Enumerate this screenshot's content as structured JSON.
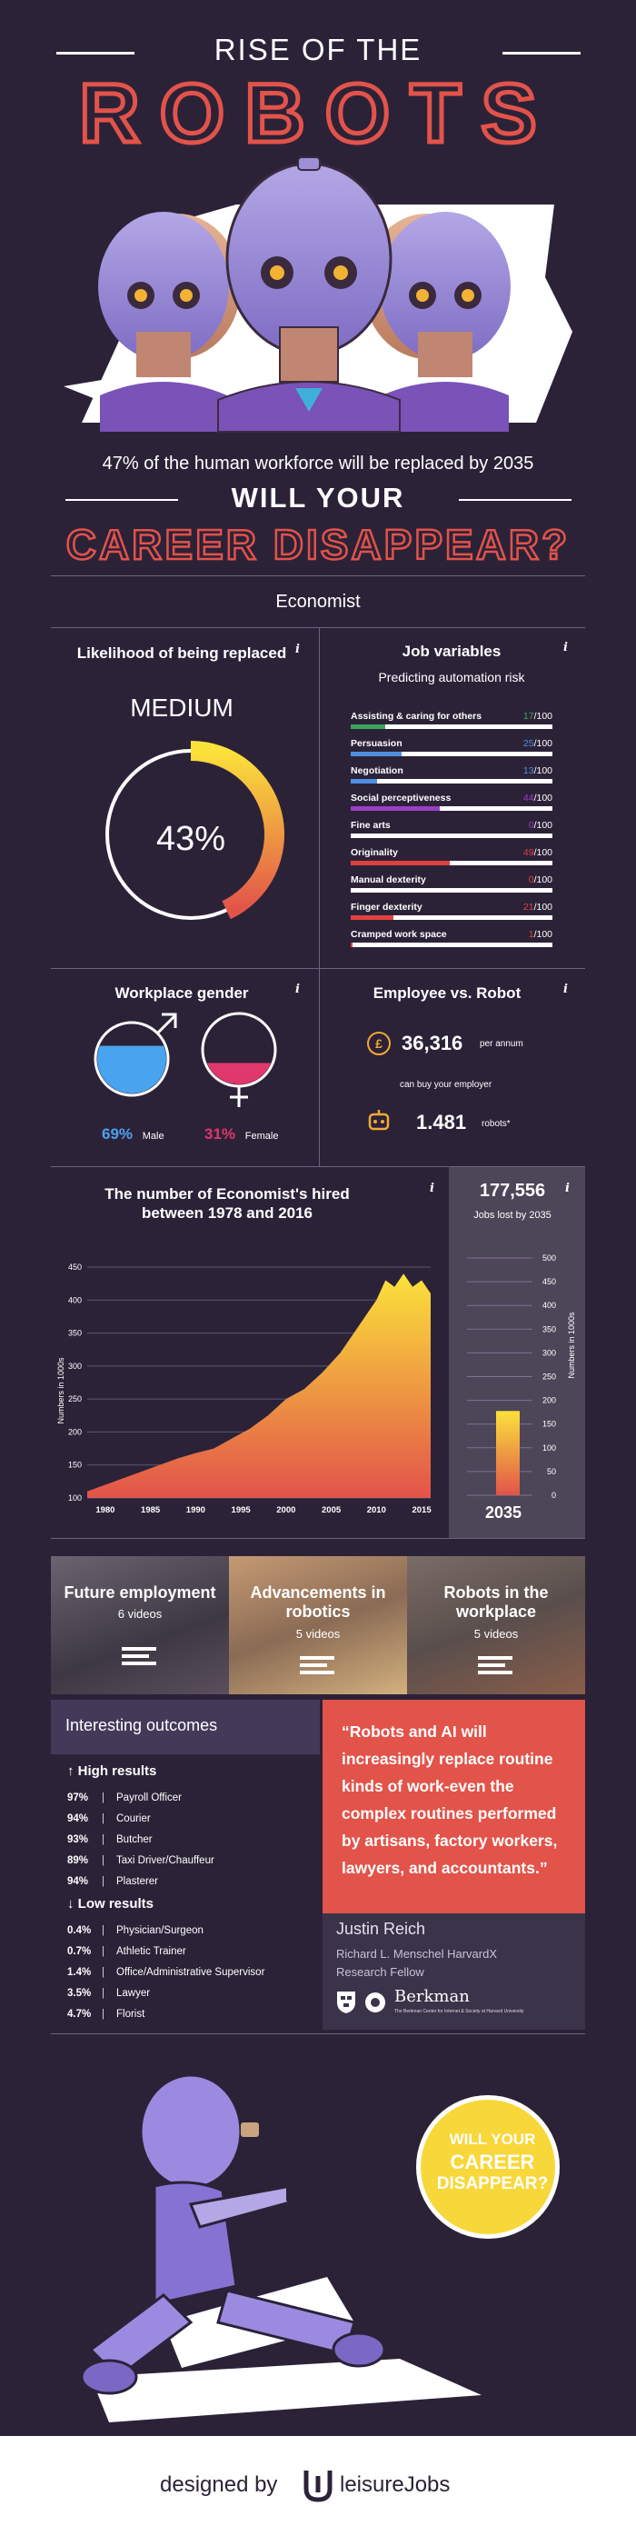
{
  "header": {
    "title_top": "RISE OF THE",
    "title_main": "ROBOTS",
    "stat": "47% of the human workforce will be replaced by 2035",
    "question_top": "WILL YOUR",
    "question_main": "CAREER DISAPPEAR?"
  },
  "job_title": "Economist",
  "likelihood": {
    "title": "Likelihood of being replaced",
    "level": "MEDIUM",
    "percent_label": "43%",
    "percent": 43
  },
  "job_variables": {
    "title": "Job variables",
    "subtitle": "Predicting automation risk",
    "items": [
      {
        "label": "Assisting & caring for others",
        "value": "17",
        "unit": "/100",
        "score": 17,
        "color": "#3aa55d"
      },
      {
        "label": "Persuasion",
        "value": "25",
        "unit": "/100",
        "score": 25,
        "color": "#4d8fe0"
      },
      {
        "label": "Negotiation",
        "value": "13",
        "unit": "/100",
        "score": 13,
        "color": "#4d8fe0"
      },
      {
        "label": "Social perceptiveness",
        "value": "44",
        "unit": "/100",
        "score": 44,
        "color": "#9a3fc4"
      },
      {
        "label": "Fine arts",
        "value": "0",
        "unit": "/100",
        "score": 0,
        "color": "#9a3fc4"
      },
      {
        "label": "Originality",
        "value": "49",
        "unit": "/100",
        "score": 49,
        "color": "#e0413f"
      },
      {
        "label": "Manual dexterity",
        "value": "0",
        "unit": "/100",
        "score": 0,
        "color": "#e0413f"
      },
      {
        "label": "Finger dexterity",
        "value": "21",
        "unit": "/100",
        "score": 21,
        "color": "#e0413f"
      },
      {
        "label": "Cramped work space",
        "value": "1",
        "unit": "/100",
        "score": 1,
        "color": "#e0413f"
      }
    ]
  },
  "gender": {
    "title": "Workplace gender",
    "male_pct": "69%",
    "male_label": "Male",
    "male_value": 69,
    "female_pct": "31%",
    "female_label": "Female",
    "female_value": 31
  },
  "employee_robot": {
    "title": "Employee vs. Robot",
    "salary": "36,316",
    "salary_unit": "per annum",
    "caption": "can buy your employer",
    "robots": "1.481",
    "robots_unit": "robots*"
  },
  "chart_data": [
    {
      "type": "area",
      "title": "The number of Economist's hired between 1978 and 2016",
      "ylabel": "Numbers in 1000s",
      "xlabel": "",
      "x_ticks": [
        "1980",
        "1985",
        "1990",
        "1995",
        "2000",
        "2005",
        "2010",
        "2015"
      ],
      "y_ticks": [
        "100",
        "150",
        "200",
        "250",
        "300",
        "350",
        "400",
        "450"
      ],
      "xlim": [
        1978,
        2016
      ],
      "ylim": [
        100,
        450
      ],
      "x": [
        1978,
        1980,
        1982,
        1984,
        1986,
        1988,
        1990,
        1992,
        1994,
        1996,
        1998,
        2000,
        2002,
        2004,
        2006,
        2008,
        2009,
        2010,
        2011,
        2012,
        2013,
        2014,
        2015,
        2016
      ],
      "values": [
        110,
        120,
        130,
        140,
        150,
        160,
        168,
        175,
        190,
        205,
        225,
        250,
        265,
        290,
        320,
        360,
        380,
        400,
        430,
        420,
        440,
        420,
        430,
        410
      ]
    },
    {
      "type": "bar",
      "title": "177,556",
      "subtitle": "Jobs lost by 2035",
      "ylabel": "Numbers in 1000s",
      "categories": [
        "2035"
      ],
      "values": [
        177.556
      ],
      "y_ticks": [
        "0",
        "50",
        "100",
        "150",
        "200",
        "250",
        "300",
        "350",
        "400",
        "450",
        "500"
      ],
      "ylim": [
        0,
        500
      ]
    }
  ],
  "videos": [
    {
      "title": "Future employment",
      "count": "6 videos"
    },
    {
      "title": "Advancements in robotics",
      "count": "5 videos"
    },
    {
      "title": "Robots in the workplace",
      "count": "5 videos"
    }
  ],
  "outcomes": {
    "title": "Interesting outcomes",
    "high_title": "High results",
    "high": [
      {
        "pct": "97%",
        "job": "Payroll Officer"
      },
      {
        "pct": "94%",
        "job": "Courier"
      },
      {
        "pct": "93%",
        "job": "Butcher"
      },
      {
        "pct": "89%",
        "job": "Taxi Driver/Chauffeur"
      },
      {
        "pct": "94%",
        "job": "Plasterer"
      }
    ],
    "low_title": "Low results",
    "low": [
      {
        "pct": "0.4%",
        "job": "Physician/Surgeon"
      },
      {
        "pct": "0.7%",
        "job": "Athletic Trainer"
      },
      {
        "pct": "1.4%",
        "job": "Office/Administrative Supervisor"
      },
      {
        "pct": "3.5%",
        "job": "Lawyer"
      },
      {
        "pct": "4.7%",
        "job": "Florist"
      }
    ]
  },
  "quote": {
    "text": "“Robots and AI will increasingly replace routine kinds of work-even the complex routines performed by artisans, factory workers, lawyers, and accountants.”",
    "author": "Justin Reich",
    "role1": "Richard L. Menschel HarvardX",
    "role2": "Research Fellow",
    "logo_name": "Berkman",
    "logo_sub": "The Berkman Center for Internet & Society at Harvard University"
  },
  "bubble": {
    "line1": "WILL YOUR",
    "line2": "CAREER",
    "line3": "DISAPPEAR?"
  },
  "footer": {
    "designed_by": "designed by",
    "brand": "leisureJobs"
  },
  "colors": {
    "background": "#2c2238",
    "accent_red": "#e2534a",
    "accent_yellow": "#f8d73a",
    "male_blue": "#4aa3ef",
    "female_pink": "#e0376c"
  }
}
